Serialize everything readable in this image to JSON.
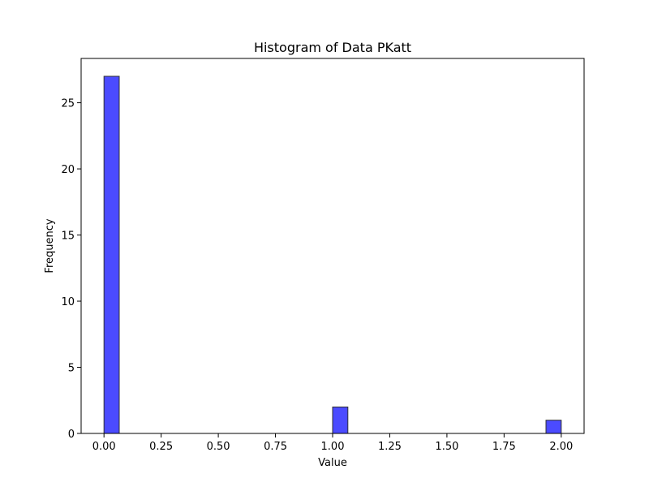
{
  "chart_data": {
    "type": "bar",
    "subtype": "histogram",
    "title": "Histogram of Data PKatt",
    "xlabel": "Value",
    "ylabel": "Frequency",
    "xlim": [
      -0.1,
      2.1
    ],
    "ylim": [
      0,
      28.35
    ],
    "bin_width": 0.0667,
    "bins": [
      {
        "start": 0.0,
        "end": 0.0667,
        "count": 27
      },
      {
        "start": 1.0,
        "end": 1.0667,
        "count": 2
      },
      {
        "start": 1.9333,
        "end": 2.0,
        "count": 1
      }
    ],
    "x_ticks": [
      0.0,
      0.25,
      0.5,
      0.75,
      1.0,
      1.25,
      1.5,
      1.75,
      2.0
    ],
    "x_tick_labels": [
      "0.00",
      "0.25",
      "0.50",
      "0.75",
      "1.00",
      "1.25",
      "1.50",
      "1.75",
      "2.00"
    ],
    "y_ticks": [
      0,
      5,
      10,
      15,
      20,
      25
    ],
    "y_tick_labels": [
      "0",
      "5",
      "10",
      "15",
      "20",
      "25"
    ],
    "grid": false,
    "bar_color": "#4b4bff",
    "edge_color": "#303030"
  }
}
